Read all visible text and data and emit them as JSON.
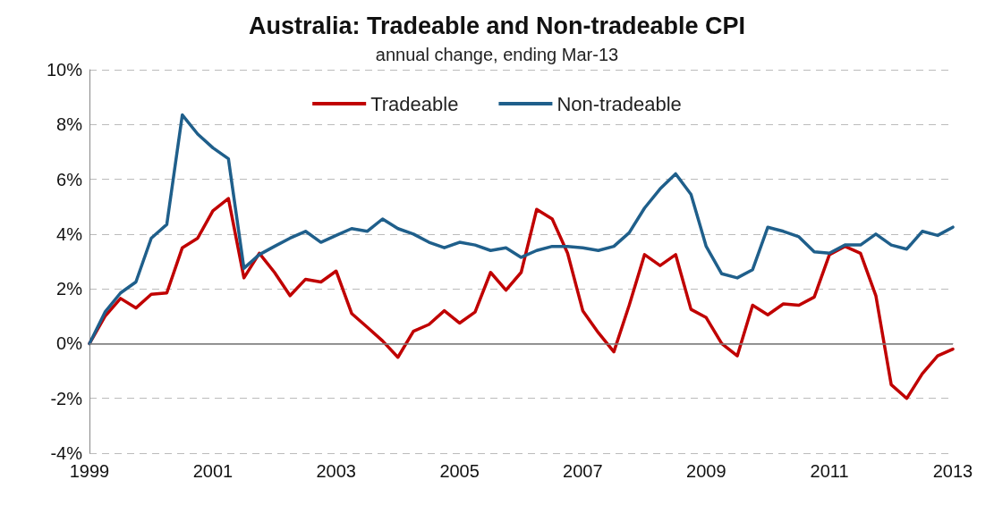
{
  "chart_data": {
    "type": "line",
    "title": "Australia: Tradeable and Non-tradeable CPI",
    "subtitle": "annual change, ending Mar-13",
    "x": [
      "1999-03",
      "1999-06",
      "1999-09",
      "1999-12",
      "2000-03",
      "2000-06",
      "2000-09",
      "2000-12",
      "2001-03",
      "2001-06",
      "2001-09",
      "2001-12",
      "2002-03",
      "2002-06",
      "2002-09",
      "2002-12",
      "2003-03",
      "2003-06",
      "2003-09",
      "2003-12",
      "2004-03",
      "2004-06",
      "2004-09",
      "2004-12",
      "2005-03",
      "2005-06",
      "2005-09",
      "2005-12",
      "2006-03",
      "2006-06",
      "2006-09",
      "2006-12",
      "2007-03",
      "2007-06",
      "2007-09",
      "2007-12",
      "2008-03",
      "2008-06",
      "2008-09",
      "2008-12",
      "2009-03",
      "2009-06",
      "2009-09",
      "2009-12",
      "2010-03",
      "2010-06",
      "2010-09",
      "2010-12",
      "2011-03",
      "2011-06",
      "2011-09",
      "2011-12",
      "2012-03",
      "2012-06",
      "2012-09",
      "2012-12",
      "2013-03"
    ],
    "series": [
      {
        "name": "Tradeable",
        "color": "#c00000",
        "values": [
          0,
          1.0,
          1.65,
          1.3,
          1.8,
          1.85,
          3.5,
          3.85,
          4.85,
          5.3,
          2.4,
          3.3,
          2.6,
          1.75,
          2.35,
          2.25,
          2.65,
          1.1,
          0.6,
          0.1,
          -0.5,
          0.45,
          0.7,
          1.2,
          0.75,
          1.15,
          2.6,
          1.95,
          2.6,
          4.9,
          4.55,
          3.3,
          1.2,
          0.4,
          -0.3,
          1.4,
          3.25,
          2.85,
          3.25,
          1.25,
          0.95,
          0,
          -0.45,
          1.4,
          1.05,
          1.45,
          1.4,
          1.7,
          3.25,
          3.55,
          3.3,
          1.75,
          -1.5,
          -2.0,
          -1.1,
          -0.45,
          -0.2
        ]
      },
      {
        "name": "Non-tradeable",
        "color": "#1f5f8b",
        "values": [
          0,
          1.15,
          1.85,
          2.25,
          3.85,
          4.35,
          8.35,
          7.65,
          7.15,
          6.75,
          2.75,
          3.25,
          3.55,
          3.85,
          4.1,
          3.7,
          3.95,
          4.2,
          4.1,
          4.55,
          4.2,
          4.0,
          3.7,
          3.5,
          3.7,
          3.6,
          3.4,
          3.5,
          3.15,
          3.4,
          3.55,
          3.55,
          3.5,
          3.4,
          3.55,
          4.05,
          4.95,
          5.65,
          6.2,
          5.45,
          3.55,
          2.55,
          2.4,
          2.7,
          4.25,
          4.1,
          3.9,
          3.35,
          3.3,
          3.6,
          3.6,
          4.0,
          3.6,
          3.45,
          4.1,
          3.95,
          4.25
        ]
      }
    ],
    "xlim": [
      "1999-03",
      "2013-03"
    ],
    "xticks": [
      {
        "value": "1999-03",
        "label": "1999"
      },
      {
        "value": "2001-03",
        "label": "2001"
      },
      {
        "value": "2003-03",
        "label": "2003"
      },
      {
        "value": "2005-03",
        "label": "2005"
      },
      {
        "value": "2007-03",
        "label": "2007"
      },
      {
        "value": "2009-03",
        "label": "2009"
      },
      {
        "value": "2011-03",
        "label": "2011"
      },
      {
        "value": "2013-03",
        "label": "2013"
      }
    ],
    "ylim": [
      -4,
      10
    ],
    "yticks": [
      {
        "value": -4,
        "label": "-4%"
      },
      {
        "value": -2,
        "label": "-2%"
      },
      {
        "value": 0,
        "label": "0%"
      },
      {
        "value": 2,
        "label": "2%"
      },
      {
        "value": 4,
        "label": "4%"
      },
      {
        "value": 6,
        "label": "6%"
      },
      {
        "value": 8,
        "label": "8%"
      },
      {
        "value": 10,
        "label": "10%"
      }
    ],
    "ref_lines": [
      {
        "axis": "y",
        "value": 0,
        "color": "#808080"
      }
    ],
    "grid": "y",
    "legend": "top",
    "marker": "none",
    "line_style": "solid"
  }
}
